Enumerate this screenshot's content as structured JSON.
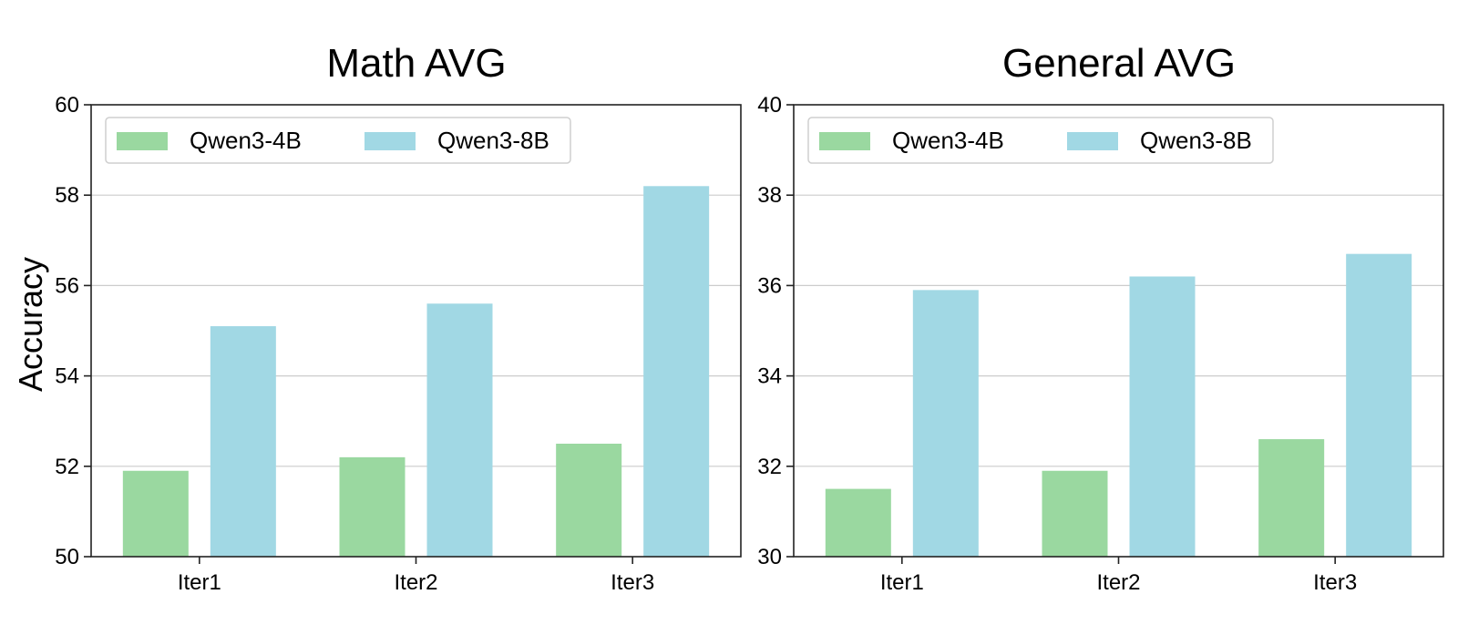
{
  "chart_data": [
    {
      "type": "bar",
      "title": "Math AVG",
      "xlabel": "",
      "ylabel": "Accuracy",
      "categories": [
        "Iter1",
        "Iter2",
        "Iter3"
      ],
      "series": [
        {
          "name": "Qwen3-4B",
          "values": [
            51.9,
            52.2,
            52.5
          ],
          "color": "#9ad8a0"
        },
        {
          "name": "Qwen3-8B",
          "values": [
            55.1,
            55.6,
            58.2
          ],
          "color": "#a1d8e4"
        }
      ],
      "ylim": [
        50,
        60
      ],
      "yticks": [
        "50",
        "52",
        "54",
        "56",
        "58",
        "60"
      ],
      "grid": "y",
      "legend": "top-left"
    },
    {
      "type": "bar",
      "title": "General AVG",
      "xlabel": "",
      "ylabel": "",
      "categories": [
        "Iter1",
        "Iter2",
        "Iter3"
      ],
      "series": [
        {
          "name": "Qwen3-4B",
          "values": [
            31.5,
            31.9,
            32.6
          ],
          "color": "#9ad8a0"
        },
        {
          "name": "Qwen3-8B",
          "values": [
            35.9,
            36.2,
            36.7
          ],
          "color": "#a1d8e4"
        }
      ],
      "ylim": [
        30,
        40
      ],
      "yticks": [
        "30",
        "32",
        "34",
        "36",
        "38",
        "40"
      ],
      "grid": "y",
      "legend": "top-left"
    }
  ]
}
